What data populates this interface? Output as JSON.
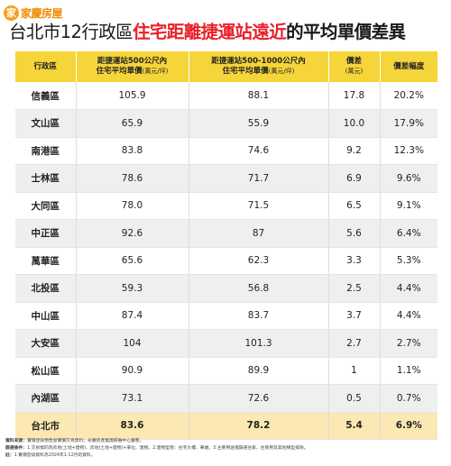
{
  "brand": {
    "badge": "家",
    "name": "家慶房屋"
  },
  "title": {
    "part1": "台北市12行政區",
    "highlight": "住宅距離捷運站遠近",
    "part2": "的平均單價差異"
  },
  "headers": {
    "district": "行政區",
    "near_line1": "距捷運站500公尺內",
    "near_line2": "住宅平均單價",
    "near_unit": "(萬元/坪)",
    "far_line1": "距捷運站500-1000公尺內",
    "far_line2": "住宅平均單價",
    "far_unit": "(萬元/坪)",
    "diff_line1": "價差",
    "diff_unit": "(萬元)",
    "pct": "價差幅度"
  },
  "chart_data": {
    "type": "table",
    "title": "台北市12行政區住宅距離捷運站遠近的平均單價差異",
    "columns": [
      "行政區",
      "距捷運站500公尺內住宅平均單價(萬元/坪)",
      "距捷運站500-1000公尺內住宅平均單價(萬元/坪)",
      "價差(萬元)",
      "價差幅度"
    ],
    "rows": [
      {
        "district": "信義區",
        "near": "105.9",
        "far": "88.1",
        "diff": "17.8",
        "pct": "20.2%"
      },
      {
        "district": "文山區",
        "near": "65.9",
        "far": "55.9",
        "diff": "10.0",
        "pct": "17.9%"
      },
      {
        "district": "南港區",
        "near": "83.8",
        "far": "74.6",
        "diff": "9.2",
        "pct": "12.3%"
      },
      {
        "district": "士林區",
        "near": "78.6",
        "far": "71.7",
        "diff": "6.9",
        "pct": "9.6%"
      },
      {
        "district": "大同區",
        "near": "78.0",
        "far": "71.5",
        "diff": "6.5",
        "pct": "9.1%"
      },
      {
        "district": "中正區",
        "near": "92.6",
        "far": "87",
        "diff": "5.6",
        "pct": "6.4%"
      },
      {
        "district": "萬華區",
        "near": "65.6",
        "far": "62.3",
        "diff": "3.3",
        "pct": "5.3%"
      },
      {
        "district": "北投區",
        "near": "59.3",
        "far": "56.8",
        "diff": "2.5",
        "pct": "4.4%"
      },
      {
        "district": "中山區",
        "near": "87.4",
        "far": "83.7",
        "diff": "3.7",
        "pct": "4.4%"
      },
      {
        "district": "大安區",
        "near": "104",
        "far": "101.3",
        "diff": "2.7",
        "pct": "2.7%"
      },
      {
        "district": "松山區",
        "near": "90.9",
        "far": "89.9",
        "diff": "1",
        "pct": "1.1%"
      },
      {
        "district": "內湖區",
        "near": "73.1",
        "far": "72.6",
        "diff": "0.5",
        "pct": "0.7%"
      },
      {
        "district": "台北市",
        "near": "83.6",
        "far": "78.2",
        "diff": "5.4",
        "pct": "6.9%",
        "total": true
      }
    ]
  },
  "notes": {
    "source_label": "資料來源：",
    "source": "實價登錄預售屋實價交易資料；永慶房產集團研展中心彙整。",
    "filter_label": "篩選條件：",
    "filter": "1.交易標的為房地(土地+建物)、房地(土地+建物)+車位、建物。2.建物型態：住宅大樓、華廈。3.主要用途僅篩選住家，住商用及其他類型排除。",
    "note_label": "註：",
    "note": "1.實價登錄資料為2024年1-12月的資料。"
  }
}
